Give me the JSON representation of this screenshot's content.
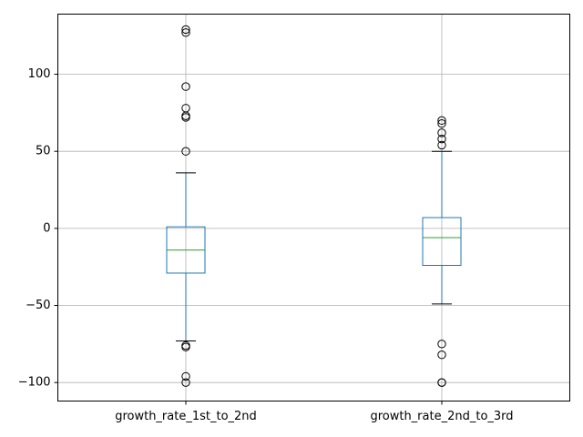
{
  "chart_data": {
    "type": "boxplot",
    "title": "",
    "xlabel": "",
    "ylabel": "",
    "ylim": [
      -112,
      139
    ],
    "grid": true,
    "y_ticks": [
      {
        "value": -100,
        "label": "−100"
      },
      {
        "value": -50,
        "label": "−50"
      },
      {
        "value": 0,
        "label": "0"
      },
      {
        "value": 50,
        "label": "50"
      },
      {
        "value": 100,
        "label": "100"
      }
    ],
    "categories": [
      "growth_rate_1st_to_2nd",
      "growth_rate_2nd_to_3rd"
    ],
    "series": [
      {
        "category": "growth_rate_1st_to_2nd",
        "whisker_low": -73,
        "q1": -29,
        "median": -14,
        "q3": 1,
        "whisker_high": 36,
        "outliers": [
          129,
          127,
          92,
          78,
          73,
          72,
          50,
          -76,
          -77,
          -96,
          -100
        ]
      },
      {
        "category": "growth_rate_2nd_to_3rd",
        "whisker_low": -49,
        "q1": -24,
        "median": -6,
        "q3": 7,
        "whisker_high": 50,
        "outliers": [
          70,
          68,
          62,
          58,
          54,
          -75,
          -82,
          -100,
          -100
        ]
      }
    ],
    "colors": {
      "box": "#1f77b4",
      "median": "#2ca02c",
      "whisker_cap": "#000000",
      "outlier": "#000000",
      "grid": "#b0b0b0"
    }
  }
}
